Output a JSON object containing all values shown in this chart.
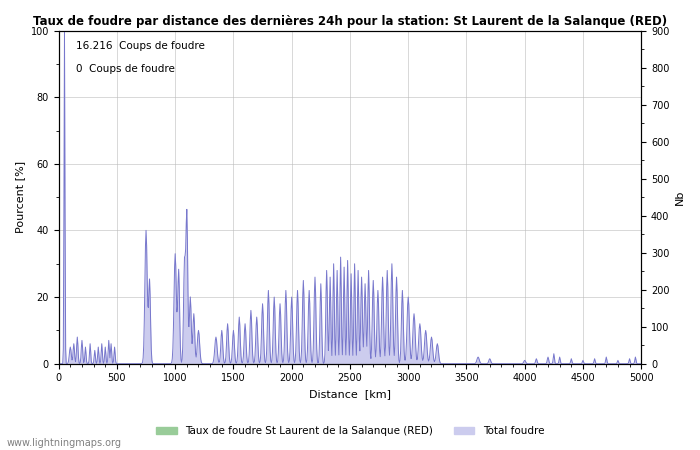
{
  "title": "Taux de foudre par distance des dernières 24h pour la station: St Laurent de la Salanque (RED)",
  "ylabel_left": "Pourcent [%]",
  "ylabel_right": "Nb",
  "xlabel": "Distance  [km]",
  "ylim_left": [
    0,
    100
  ],
  "ylim_right": [
    0,
    900
  ],
  "xlim": [
    0,
    5000
  ],
  "yticks_left": [
    0,
    20,
    40,
    60,
    80,
    100
  ],
  "yticks_right": [
    0,
    100,
    200,
    300,
    400,
    500,
    600,
    700,
    800,
    900
  ],
  "xticks": [
    0,
    500,
    1000,
    1500,
    2000,
    2500,
    3000,
    3500,
    4000,
    4500,
    5000
  ],
  "annotation1": "16.216  Coups de foudre",
  "annotation2": "0  Coups de foudre",
  "legend1": "Taux de foudre St Laurent de la Salanque (RED)",
  "legend2": "Total foudre",
  "watermark": "www.lightningmaps.org",
  "line_color": "#7777cc",
  "fill_color_blue": "#ccccee",
  "fill_color_green": "#99cc99",
  "bg_color": "#ffffff",
  "grid_color": "#bbbbbb",
  "figsize": [
    7.0,
    4.5
  ],
  "dpi": 100
}
